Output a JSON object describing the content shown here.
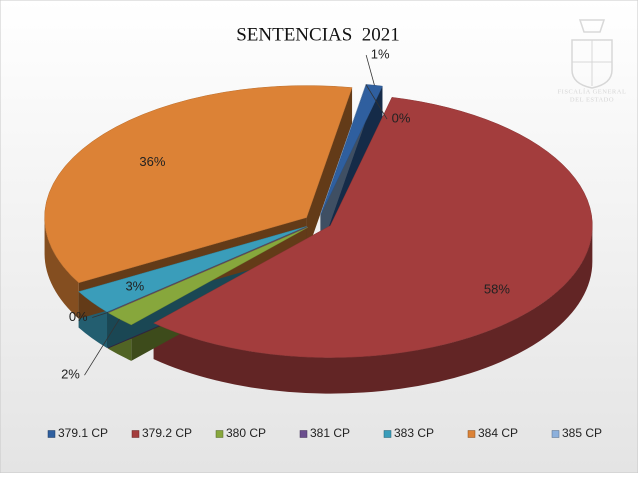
{
  "chart_data": {
    "type": "pie3d",
    "title": "SENTENCIAS  2021",
    "categories": [
      "379.1 CP",
      "379.2 CP",
      "380 CP",
      "381 CP",
      "383 CP",
      "384 CP",
      "385 CP"
    ],
    "values": [
      1,
      58,
      2,
      0,
      3,
      36,
      0
    ],
    "value_labels": [
      "1%",
      "58%",
      "2%",
      "0%",
      "3%",
      "36%",
      "0%"
    ],
    "colors": [
      "#2f5f9f",
      "#a33d3d",
      "#87a73c",
      "#6b4e8e",
      "#3a9dba",
      "#dc8236",
      "#8cb0dc"
    ],
    "legend": "bottom",
    "logo_text": [
      "FISCALÍA GENERAL",
      "DEL ESTADO"
    ]
  }
}
